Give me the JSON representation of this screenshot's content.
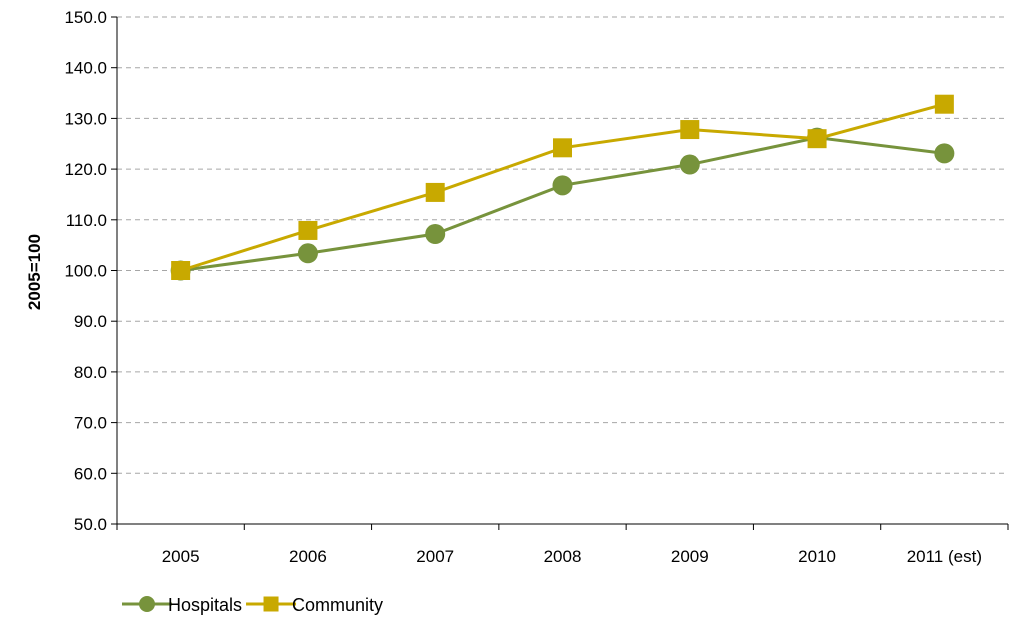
{
  "chart_data": {
    "type": "line",
    "categories": [
      "2005",
      "2006",
      "2007",
      "2008",
      "2009",
      "2010",
      "2011 (est)"
    ],
    "series": [
      {
        "name": "Hospitals",
        "values": [
          100.0,
          103.4,
          107.2,
          116.8,
          120.9,
          126.2,
          123.1
        ],
        "color": "#77933c",
        "marker": "circle"
      },
      {
        "name": "Community",
        "values": [
          100.0,
          107.9,
          115.4,
          124.2,
          127.8,
          126.0,
          132.8
        ],
        "color": "#c8a900",
        "marker": "square"
      }
    ],
    "ylabel": "2005=100",
    "xlabel": "",
    "ylim": [
      50,
      150
    ],
    "yticks": [
      "50.0",
      "60.0",
      "70.0",
      "80.0",
      "90.0",
      "100.0",
      "110.0",
      "120.0",
      "130.0",
      "140.0",
      "150.0"
    ],
    "grid": true,
    "legend_position": "bottom-left"
  }
}
